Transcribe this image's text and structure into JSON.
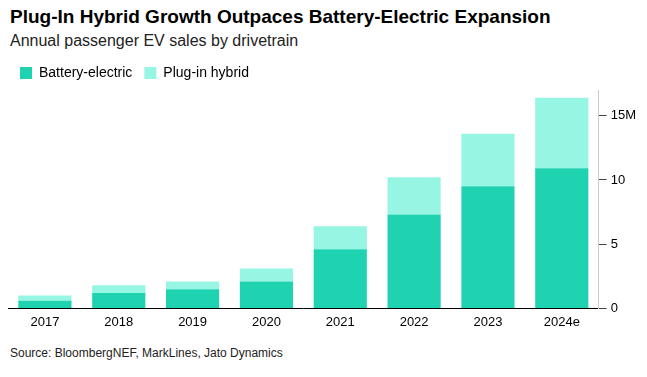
{
  "chart_data": {
    "type": "bar",
    "title": "Plug-In Hybrid Growth Outpaces Battery-Electric Expansion",
    "subtitle": "Annual passenger EV sales by drivetrain",
    "source": "Source: BloombergNEF, MarkLines, Jato Dynamics",
    "categories": [
      "2017",
      "2018",
      "2019",
      "2020",
      "2021",
      "2022",
      "2023",
      "2024e"
    ],
    "series": [
      {
        "name": "Battery-electric",
        "color": "#1fd3b1",
        "values": [
          0.6,
          1.2,
          1.5,
          2.1,
          4.6,
          7.3,
          9.5,
          10.9
        ]
      },
      {
        "name": "Plug-in hybrid",
        "color": "#97f5e3",
        "values": [
          0.4,
          0.6,
          0.6,
          1.0,
          1.8,
          2.9,
          4.1,
          5.5
        ]
      }
    ],
    "ylim": [
      0,
      17
    ],
    "yticks": [
      0,
      5,
      10,
      {
        "value": 15,
        "label": "15M"
      }
    ],
    "stacked": true,
    "grid": false,
    "legend": "top-left"
  }
}
